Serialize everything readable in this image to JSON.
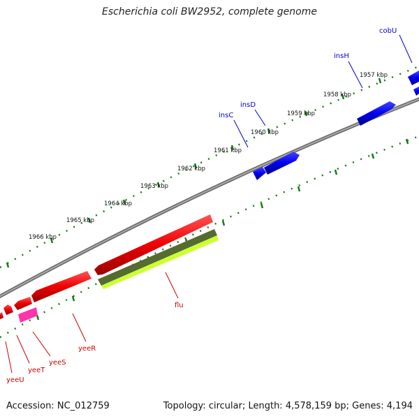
{
  "title": "Escherichia coli BW2952, complete genome",
  "footer": {
    "accession_label": "Accession:",
    "accession": "NC_012759",
    "topology_label": "Topology:",
    "topology": "circular",
    "length_label": "Length:",
    "length": "4,578,159 bp",
    "genes_label": "Genes:",
    "genes": "4,194"
  },
  "ruler_ticks": [
    "1957 kbp",
    "1958 kbp",
    "1959 kbp",
    "1960 kbp",
    "1961 kbp",
    "1962 kbp",
    "1963 kbp",
    "1964 kbp",
    "1965 kbp",
    "1966 kbp"
  ],
  "genes": [
    {
      "name": "cobU",
      "strand": "forward",
      "color": "#0000dd"
    },
    {
      "name": "insH",
      "strand": "forward",
      "color": "#0000dd"
    },
    {
      "name": "insD",
      "strand": "forward",
      "color": "#0000dd"
    },
    {
      "name": "insC",
      "strand": "forward",
      "color": "#0000dd"
    },
    {
      "name": "flu",
      "strand": "reverse",
      "color": "#cc0000"
    },
    {
      "name": "yeeR",
      "strand": "reverse",
      "color": "#cc0000"
    },
    {
      "name": "yeeS",
      "strand": "reverse",
      "color": "#cc0000"
    },
    {
      "name": "yeeT",
      "strand": "reverse",
      "color": "#cc0000"
    },
    {
      "name": "yeeU",
      "strand": "reverse",
      "color": "#cc0000"
    }
  ],
  "colors": {
    "forward_gene": "#0000ee",
    "reverse_gene": "#ee0000",
    "pink_gene": "#ff33aa",
    "green_gene": "#556b2f",
    "lime_gene": "#ccff33",
    "backbone": "#808080",
    "tick": "#1a7a1a"
  }
}
